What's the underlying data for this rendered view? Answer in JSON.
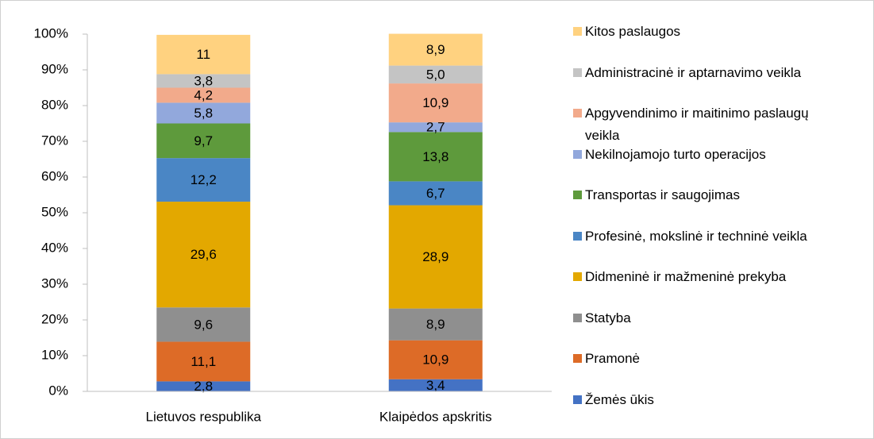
{
  "chart_data": {
    "type": "stacked_bar",
    "categories": [
      "Lietuvos respublika",
      "Klaipėdos apskritis"
    ],
    "ylim": [
      0,
      100
    ],
    "yticks": [
      {
        "value": 0,
        "label": "0%"
      },
      {
        "value": 10,
        "label": "10%"
      },
      {
        "value": 20,
        "label": "20%"
      },
      {
        "value": 30,
        "label": "30%"
      },
      {
        "value": 40,
        "label": "40%"
      },
      {
        "value": 50,
        "label": "50%"
      },
      {
        "value": 60,
        "label": "60%"
      },
      {
        "value": 70,
        "label": "70%"
      },
      {
        "value": 80,
        "label": "80%"
      },
      {
        "value": 90,
        "label": "90%"
      },
      {
        "value": 100,
        "label": "100%"
      }
    ],
    "series": [
      {
        "name": "Žemės ūkis",
        "color": "#4472c4",
        "values": [
          2.8,
          3.4
        ],
        "value_labels": [
          "2,8",
          "3,4"
        ]
      },
      {
        "name": "Pramonė",
        "color": "#dd6b27",
        "values": [
          11.1,
          10.9
        ],
        "value_labels": [
          "11,1",
          "10,9"
        ]
      },
      {
        "name": "Statyba",
        "color": "#8f8f8f",
        "values": [
          9.6,
          8.9
        ],
        "value_labels": [
          "9,6",
          "8,9"
        ]
      },
      {
        "name": "Didmeninė ir mažmeninė prekyba",
        "color": "#e3a800",
        "values": [
          29.6,
          28.9
        ],
        "value_labels": [
          "29,6",
          "28,9"
        ]
      },
      {
        "name": "Profesinė, mokslinė ir techninė veikla",
        "color": "#4a86c5",
        "values": [
          12.2,
          6.7
        ],
        "value_labels": [
          "12,2",
          "6,7"
        ]
      },
      {
        "name": "Transportas ir saugojimas",
        "color": "#5e9a3c",
        "values": [
          9.7,
          13.8
        ],
        "value_labels": [
          "9,7",
          "13,8"
        ]
      },
      {
        "name": "Nekilnojamojo turto operacijos",
        "color": "#92a8dc",
        "values": [
          5.8,
          2.7
        ],
        "value_labels": [
          "5,8",
          "2,7"
        ]
      },
      {
        "name": "Apgyvendinimo ir maitinimo paslaugų veikla",
        "color": "#f2aa8b",
        "values": [
          4.2,
          10.9
        ],
        "value_labels": [
          "4,2",
          "10,9"
        ]
      },
      {
        "name": "Administracinė ir aptarnavimo veikla",
        "color": "#c4c4c4",
        "values": [
          3.8,
          5.0
        ],
        "value_labels": [
          "3,8",
          "5,0"
        ]
      },
      {
        "name": "Kitos paslaugos",
        "color": "#ffd280",
        "values": [
          11,
          8.9
        ],
        "value_labels": [
          "11",
          "8,9"
        ]
      }
    ]
  }
}
